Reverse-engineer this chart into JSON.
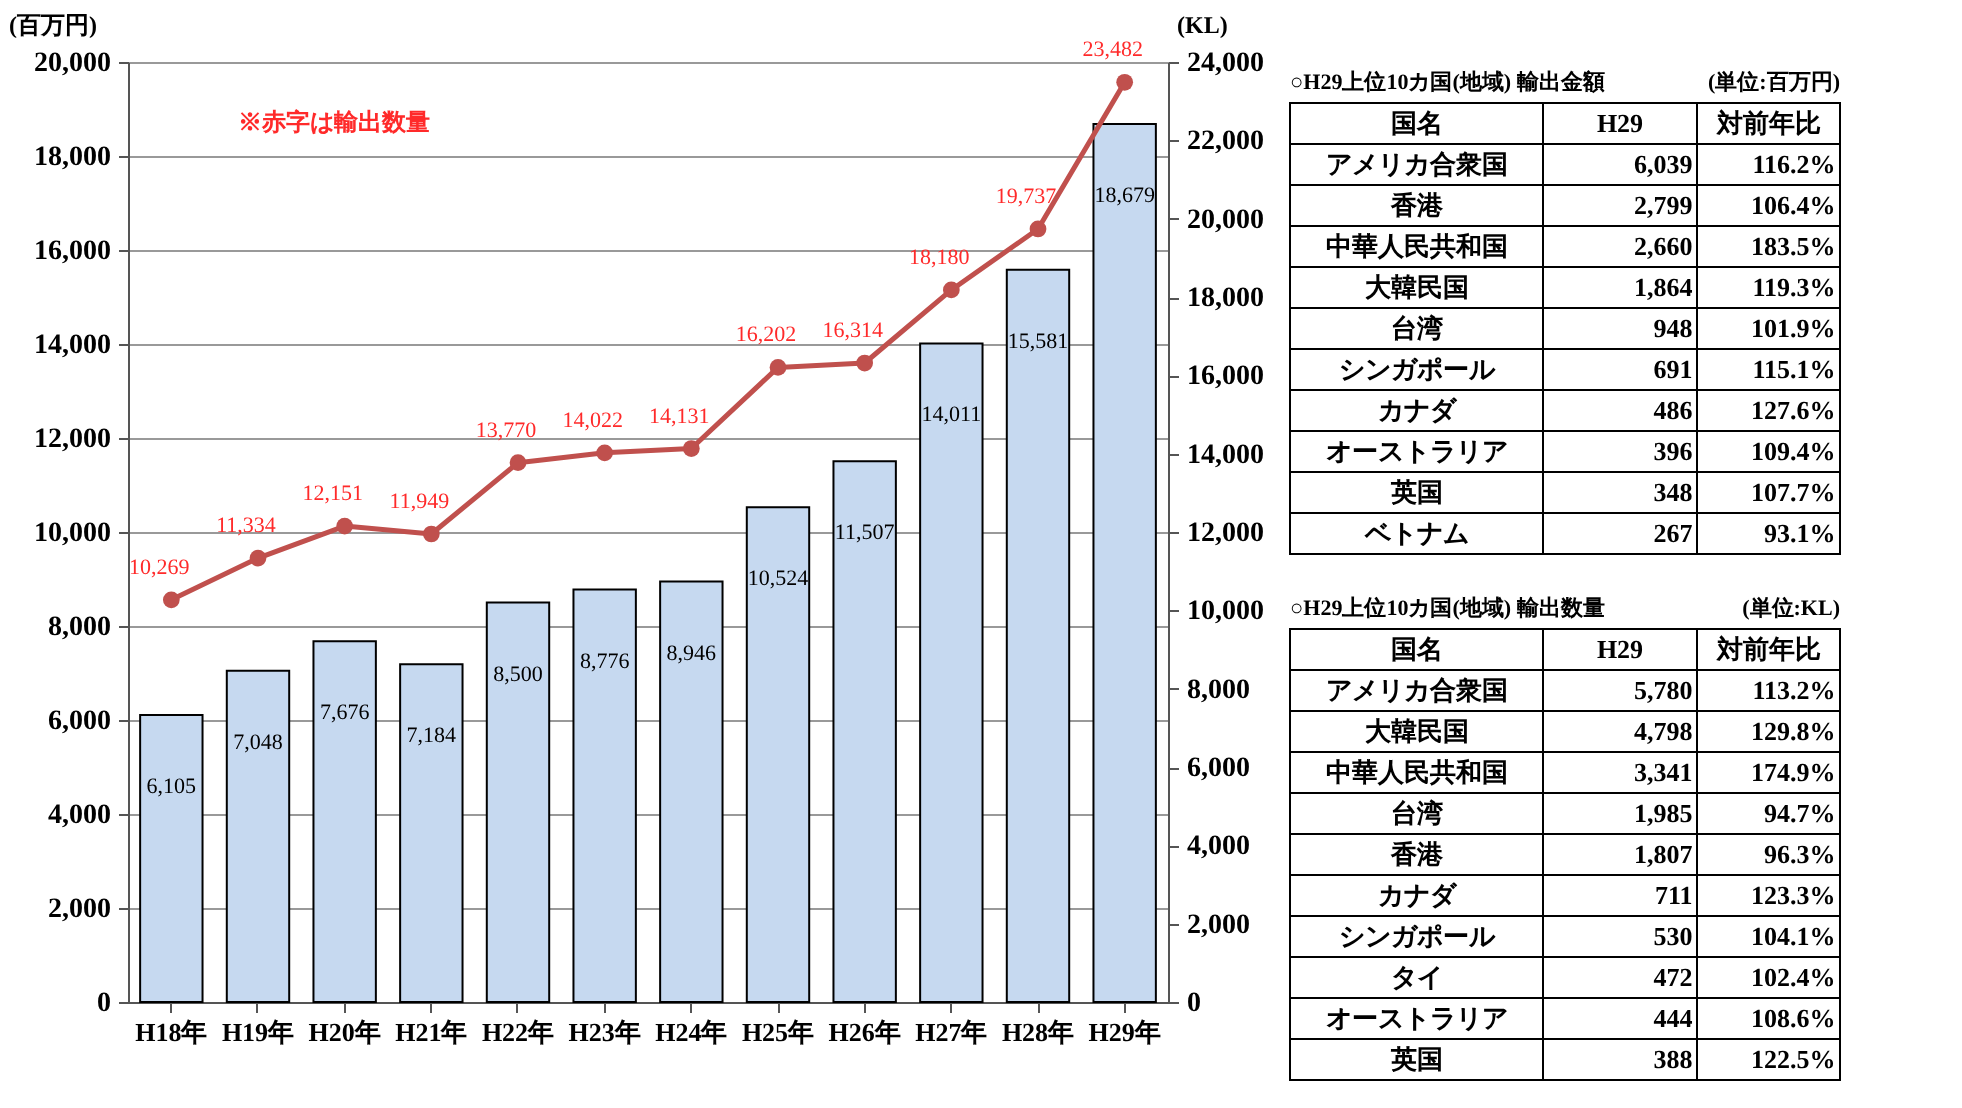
{
  "chart_data": [
    {
      "type": "bar",
      "categories": [
        "H18年",
        "H19年",
        "H20年",
        "H21年",
        "H22年",
        "H23年",
        "H24年",
        "H25年",
        "H26年",
        "H27年",
        "H28年",
        "H29年"
      ],
      "series": [
        {
          "type": "bar",
          "color": "#c6d9f0",
          "values": [
            6105,
            7048,
            7676,
            7184,
            8500,
            8776,
            8946,
            10524,
            11507,
            14011,
            15581,
            18679
          ],
          "value_labels": [
            "6,105",
            "7,048",
            "7,676",
            "7,184",
            "8,500",
            "8,776",
            "8,946",
            "10,524",
            "11,507",
            "14,011",
            "15,581",
            "18,679"
          ]
        },
        {
          "type": "line",
          "axis": "y2",
          "color": "#c0504d",
          "values": [
            10269,
            11334,
            12151,
            11949,
            13770,
            14022,
            14131,
            16202,
            16314,
            18180,
            19737,
            23482
          ],
          "value_labels": [
            "10,269",
            "11,334",
            "12,151",
            "11,949",
            "13,770",
            "14,022",
            "14,131",
            "16,202",
            "16,314",
            "18,180",
            "19,737",
            "23,482"
          ]
        }
      ],
      "ylabel": "(百万円)",
      "y2label": "(KL)",
      "ylim": [
        0,
        20000
      ],
      "yticks": [
        0,
        {
          "value": 2000,
          "label": "2,000"
        },
        {
          "value": 4000,
          "label": "4,000"
        },
        {
          "value": 6000,
          "label": "6,000"
        },
        {
          "value": 8000,
          "label": "8,000"
        },
        {
          "value": 10000,
          "label": "10,000"
        },
        {
          "value": 12000,
          "label": "12,000"
        },
        {
          "value": 14000,
          "label": "14,000"
        },
        {
          "value": 16000,
          "label": "16,000"
        },
        {
          "value": 18000,
          "label": "18,000"
        },
        {
          "value": 20000,
          "label": "20,000"
        }
      ],
      "y2lim": [
        0,
        24000
      ],
      "y2ticks": [
        0,
        {
          "value": 2000,
          "label": "2,000"
        },
        {
          "value": 4000,
          "label": "4,000"
        },
        {
          "value": 6000,
          "label": "6,000"
        },
        {
          "value": 8000,
          "label": "8,000"
        },
        {
          "value": 10000,
          "label": "10,000"
        },
        {
          "value": 12000,
          "label": "12,000"
        },
        {
          "value": 14000,
          "label": "14,000"
        },
        {
          "value": 16000,
          "label": "16,000"
        },
        {
          "value": 18000,
          "label": "18,000"
        },
        {
          "value": 20000,
          "label": "20,000"
        },
        {
          "value": 22000,
          "label": "22,000"
        },
        {
          "value": 24000,
          "label": "24,000"
        }
      ],
      "grid": "y",
      "marker": "circle",
      "annotations": [
        "※赤字は輸出数量"
      ]
    },
    {
      "type": "other",
      "title": "○H29上位10カ国(地域) 輸出金額",
      "subtitle": "(単位:百万円)",
      "xlabel": "国名",
      "categories": [
        "アメリカ合衆国",
        "香港",
        "中華人民共和国",
        "大韓民国",
        "台湾",
        "シンガポール",
        "カナダ",
        "オーストラリア",
        "英国",
        "ベトナム"
      ],
      "series": [
        {
          "name": "H29",
          "values": [
            6039,
            2799,
            2660,
            1864,
            948,
            691,
            486,
            396,
            348,
            267
          ],
          "value_labels": [
            "6,039",
            "2,799",
            "2,660",
            "1,864",
            "948",
            "691",
            "486",
            "396",
            "348",
            "267"
          ]
        },
        {
          "name": "対前年比",
          "values": [
            116.2,
            106.4,
            183.5,
            119.3,
            101.9,
            115.1,
            127.6,
            109.4,
            107.7,
            93.1
          ],
          "value_labels": [
            "116.2%",
            "106.4%",
            "183.5%",
            "119.3%",
            "101.9%",
            "115.1%",
            "127.6%",
            "109.4%",
            "107.7%",
            "93.1%"
          ]
        }
      ]
    },
    {
      "type": "other",
      "title": "○H29上位10カ国(地域) 輸出数量",
      "subtitle": "(単位:KL)",
      "xlabel": "国名",
      "categories": [
        "アメリカ合衆国",
        "大韓民国",
        "中華人民共和国",
        "台湾",
        "香港",
        "カナダ",
        "シンガポール",
        "タイ",
        "オーストラリア",
        "英国"
      ],
      "series": [
        {
          "name": "H29",
          "values": [
            5780,
            4798,
            3341,
            1985,
            1807,
            711,
            530,
            472,
            444,
            388
          ],
          "value_labels": [
            "5,780",
            "4,798",
            "3,341",
            "1,985",
            "1,807",
            "711",
            "530",
            "472",
            "444",
            "388"
          ]
        },
        {
          "name": "対前年比",
          "values": [
            113.2,
            129.8,
            174.9,
            94.7,
            96.3,
            123.3,
            104.1,
            102.4,
            108.6,
            122.5
          ],
          "value_labels": [
            "113.2%",
            "129.8%",
            "174.9%",
            "94.7%",
            "96.3%",
            "123.3%",
            "104.1%",
            "102.4%",
            "108.6%",
            "122.5%"
          ]
        }
      ]
    }
  ]
}
